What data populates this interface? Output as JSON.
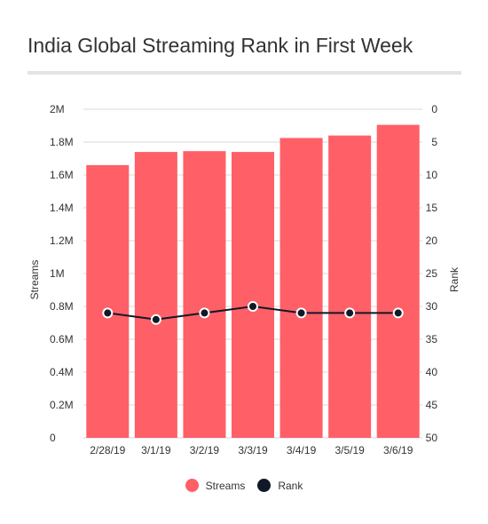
{
  "title": "India Global Streaming Rank in First Week",
  "colors": {
    "streams": "#ff5f67",
    "rank": "#111827",
    "grid": "#d9d9d9",
    "text": "#333333"
  },
  "chart_data": {
    "type": "bar",
    "title": "India Global Streaming Rank in First Week",
    "categories": [
      "2/28/19",
      "3/1/19",
      "3/2/19",
      "3/3/19",
      "3/4/19",
      "3/5/19",
      "3/6/19"
    ],
    "series": [
      {
        "name": "Streams",
        "type": "bar",
        "axis": "left",
        "values": [
          1660000,
          1740000,
          1745000,
          1740000,
          1825000,
          1840000,
          1905000
        ]
      },
      {
        "name": "Rank",
        "type": "line",
        "axis": "right",
        "values": [
          31,
          32,
          31,
          30,
          31,
          31,
          31
        ]
      }
    ],
    "ylabel": "Streams",
    "y2label": "Rank",
    "ylim": [
      0,
      2000000
    ],
    "y2lim": [
      0,
      50
    ],
    "y2_inverted": true,
    "yticks": [
      "0",
      "0.2M",
      "0.4M",
      "0.6M",
      "0.8M",
      "1M",
      "1.2M",
      "1.4M",
      "1.6M",
      "1.8M",
      "2M"
    ],
    "y2ticks": [
      "0",
      "5",
      "10",
      "15",
      "20",
      "25",
      "30",
      "35",
      "40",
      "45",
      "50"
    ],
    "grid": true,
    "legend": "bottom-center"
  }
}
